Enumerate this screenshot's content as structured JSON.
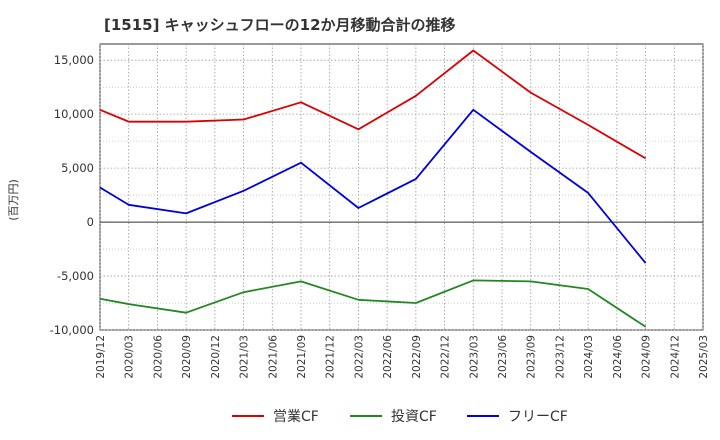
{
  "chart_data": {
    "type": "line",
    "title": "[1515]  キャッシュフローの12か月移動合計の推移",
    "ylabel": "(百万円)",
    "xlabel": "",
    "ylim": [
      -10000,
      16500
    ],
    "yticks": [
      15000,
      10000,
      5000,
      0,
      -5000,
      -10000
    ],
    "ytick_labels": [
      "15,000",
      "10,000",
      "5,000",
      "0",
      "-5,000",
      "-10,000"
    ],
    "categories": [
      "2019/12",
      "2020/03",
      "2020/06",
      "2020/09",
      "2020/12",
      "2021/03",
      "2021/06",
      "2021/09",
      "2021/12",
      "2022/03",
      "2022/06",
      "2022/09",
      "2022/12",
      "2023/03",
      "2023/06",
      "2023/09",
      "2023/12",
      "2024/03",
      "2024/06",
      "2024/09",
      "2024/12",
      "2025/03"
    ],
    "series": [
      {
        "name": "営業CF",
        "color": "#dd0000",
        "points": [
          [
            "2019/12",
            10400
          ],
          [
            "2020/03",
            9300
          ],
          [
            "2020/09",
            9300
          ],
          [
            "2021/03",
            9500
          ],
          [
            "2021/09",
            11100
          ],
          [
            "2022/03",
            8600
          ],
          [
            "2022/09",
            11700
          ],
          [
            "2023/03",
            15900
          ],
          [
            "2023/09",
            12000
          ],
          [
            "2024/03",
            9000
          ],
          [
            "2024/09",
            5900
          ]
        ]
      },
      {
        "name": "投資CF",
        "color": "#228822",
        "points": [
          [
            "2019/12",
            -7100
          ],
          [
            "2020/03",
            -7600
          ],
          [
            "2020/09",
            -8400
          ],
          [
            "2021/03",
            -6500
          ],
          [
            "2021/09",
            -5500
          ],
          [
            "2022/03",
            -7200
          ],
          [
            "2022/09",
            -7500
          ],
          [
            "2023/03",
            -5400
          ],
          [
            "2023/09",
            -5500
          ],
          [
            "2024/03",
            -6200
          ],
          [
            "2024/09",
            -9700
          ]
        ]
      },
      {
        "name": "フリーCF",
        "color": "#0000dd",
        "points": [
          [
            "2019/12",
            3200
          ],
          [
            "2020/03",
            1600
          ],
          [
            "2020/09",
            800
          ],
          [
            "2021/03",
            2900
          ],
          [
            "2021/09",
            5500
          ],
          [
            "2022/03",
            1300
          ],
          [
            "2022/09",
            4000
          ],
          [
            "2023/03",
            10400
          ],
          [
            "2023/09",
            6500
          ],
          [
            "2024/03",
            2700
          ],
          [
            "2024/09",
            -3800
          ]
        ]
      }
    ],
    "legend_position": "bottom-center",
    "grid": true
  }
}
